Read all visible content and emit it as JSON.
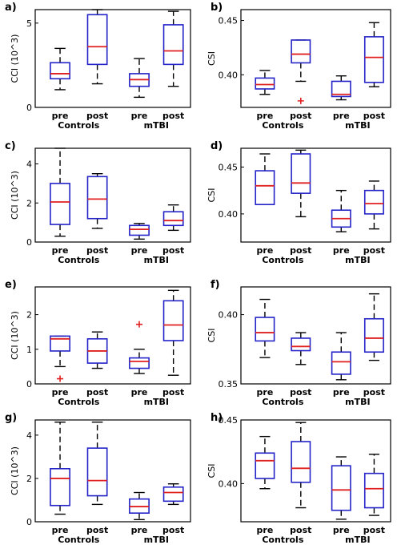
{
  "chart_data": [
    {
      "panel": "a)",
      "type": "box",
      "ylabel": "CCI (10^3)",
      "ylim": [
        0,
        5.8
      ],
      "yticks": [
        0,
        5
      ],
      "ytick_labels": [
        "0",
        "5"
      ],
      "group_labels": [
        "Controls",
        "mTBI"
      ],
      "boxes": [
        {
          "label": "pre",
          "whislo": 1.05,
          "q1": 1.7,
          "med": 2.0,
          "q3": 2.65,
          "whishi": 3.5,
          "outliers": []
        },
        {
          "label": "post",
          "whislo": 1.4,
          "q1": 2.55,
          "med": 3.6,
          "q3": 5.5,
          "whishi": 5.8,
          "outliers": []
        },
        {
          "label": "pre",
          "whislo": 0.6,
          "q1": 1.25,
          "med": 1.65,
          "q3": 2.0,
          "whishi": 2.9,
          "outliers": []
        },
        {
          "label": "post",
          "whislo": 1.25,
          "q1": 2.55,
          "med": 3.35,
          "q3": 4.9,
          "whishi": 5.7,
          "outliers": []
        }
      ]
    },
    {
      "panel": "b)",
      "type": "box",
      "ylabel": "CSI",
      "ylim": [
        0.37,
        0.46
      ],
      "yticks": [
        0.4,
        0.45
      ],
      "ytick_labels": [
        "0.40",
        "0.45"
      ],
      "group_labels": [
        "Controls",
        "mTBI"
      ],
      "boxes": [
        {
          "label": "pre",
          "whislo": 0.382,
          "q1": 0.387,
          "med": 0.391,
          "q3": 0.397,
          "whishi": 0.404,
          "outliers": []
        },
        {
          "label": "post",
          "whislo": 0.394,
          "q1": 0.411,
          "med": 0.419,
          "q3": 0.432,
          "whishi": 0.432,
          "outliers": [
            0.376
          ]
        },
        {
          "label": "pre",
          "whislo": 0.377,
          "q1": 0.38,
          "med": 0.382,
          "q3": 0.394,
          "whishi": 0.399,
          "outliers": []
        },
        {
          "label": "post",
          "whislo": 0.389,
          "q1": 0.393,
          "med": 0.416,
          "q3": 0.435,
          "whishi": 0.448,
          "outliers": []
        }
      ]
    },
    {
      "panel": "c)",
      "type": "box",
      "ylabel": "CCI (10^3)",
      "ylim": [
        0,
        4.8
      ],
      "yticks": [
        0,
        2,
        4
      ],
      "ytick_labels": [
        "0",
        "2",
        "4"
      ],
      "group_labels": [
        "Controls",
        "mTBI"
      ],
      "boxes": [
        {
          "label": "pre",
          "whislo": 0.3,
          "q1": 0.9,
          "med": 2.05,
          "q3": 3.0,
          "whishi": 4.8,
          "outliers": []
        },
        {
          "label": "post",
          "whislo": 0.7,
          "q1": 1.2,
          "med": 2.2,
          "q3": 3.35,
          "whishi": 3.5,
          "outliers": []
        },
        {
          "label": "pre",
          "whislo": 0.15,
          "q1": 0.35,
          "med": 0.65,
          "q3": 0.85,
          "whishi": 0.95,
          "outliers": []
        },
        {
          "label": "post",
          "whislo": 0.6,
          "q1": 0.85,
          "med": 1.1,
          "q3": 1.55,
          "whishi": 1.9,
          "outliers": []
        }
      ]
    },
    {
      "panel": "d)",
      "type": "box",
      "ylabel": "CSI",
      "ylim": [
        0.37,
        0.47
      ],
      "yticks": [
        0.4,
        0.45
      ],
      "ytick_labels": [
        "0.40",
        "0.45"
      ],
      "group_labels": [
        "Controls",
        "mTBI"
      ],
      "boxes": [
        {
          "label": "pre",
          "whislo": 0.41,
          "q1": 0.41,
          "med": 0.43,
          "q3": 0.446,
          "whishi": 0.464,
          "outliers": []
        },
        {
          "label": "post",
          "whislo": 0.397,
          "q1": 0.422,
          "med": 0.433,
          "q3": 0.464,
          "whishi": 0.468,
          "outliers": []
        },
        {
          "label": "pre",
          "whislo": 0.381,
          "q1": 0.386,
          "med": 0.395,
          "q3": 0.404,
          "whishi": 0.425,
          "outliers": []
        },
        {
          "label": "post",
          "whislo": 0.384,
          "q1": 0.4,
          "med": 0.411,
          "q3": 0.425,
          "whishi": 0.435,
          "outliers": []
        }
      ]
    },
    {
      "panel": "e)",
      "type": "box",
      "ylabel": "CCI (10^3)",
      "ylim": [
        0,
        2.8
      ],
      "yticks": [
        0,
        1,
        2
      ],
      "ytick_labels": [
        "0",
        "1",
        "2"
      ],
      "group_labels": [
        "Controls",
        "mTBI"
      ],
      "boxes": [
        {
          "label": "pre",
          "whislo": 0.5,
          "q1": 0.95,
          "med": 1.3,
          "q3": 1.38,
          "whishi": 1.38,
          "outliers": [
            0.15
          ]
        },
        {
          "label": "post",
          "whislo": 0.45,
          "q1": 0.6,
          "med": 0.95,
          "q3": 1.3,
          "whishi": 1.5,
          "outliers": []
        },
        {
          "label": "pre",
          "whislo": 0.3,
          "q1": 0.45,
          "med": 0.65,
          "q3": 0.75,
          "whishi": 1.0,
          "outliers": [
            1.72
          ]
        },
        {
          "label": "post",
          "whislo": 0.25,
          "q1": 1.25,
          "med": 1.7,
          "q3": 2.4,
          "whishi": 2.7,
          "outliers": []
        }
      ]
    },
    {
      "panel": "f)",
      "type": "box",
      "ylabel": "CSI",
      "ylim": [
        0.35,
        0.42
      ],
      "yticks": [
        0.35,
        0.4
      ],
      "ytick_labels": [
        "0.35",
        "0.40"
      ],
      "group_labels": [
        "Controls",
        "mTBI"
      ],
      "boxes": [
        {
          "label": "pre",
          "whislo": 0.369,
          "q1": 0.381,
          "med": 0.387,
          "q3": 0.398,
          "whishi": 0.411,
          "outliers": []
        },
        {
          "label": "post",
          "whislo": 0.364,
          "q1": 0.374,
          "med": 0.377,
          "q3": 0.383,
          "whishi": 0.387,
          "outliers": []
        },
        {
          "label": "pre",
          "whislo": 0.353,
          "q1": 0.357,
          "med": 0.366,
          "q3": 0.373,
          "whishi": 0.387,
          "outliers": []
        },
        {
          "label": "post",
          "whislo": 0.367,
          "q1": 0.373,
          "med": 0.383,
          "q3": 0.397,
          "whishi": 0.415,
          "outliers": []
        }
      ]
    },
    {
      "panel": "g)",
      "type": "box",
      "ylabel": "CCI (10^3)",
      "ylim": [
        0,
        4.7
      ],
      "yticks": [
        0,
        2,
        4
      ],
      "ytick_labels": [
        "0",
        "2",
        "4"
      ],
      "group_labels": [
        "Controls",
        "mTBI"
      ],
      "boxes": [
        {
          "label": "pre",
          "whislo": 0.35,
          "q1": 0.75,
          "med": 2.0,
          "q3": 2.45,
          "whishi": 4.6,
          "outliers": []
        },
        {
          "label": "post",
          "whislo": 0.8,
          "q1": 1.2,
          "med": 1.9,
          "q3": 3.4,
          "whishi": 4.6,
          "outliers": []
        },
        {
          "label": "pre",
          "whislo": 0.1,
          "q1": 0.4,
          "med": 0.7,
          "q3": 1.05,
          "whishi": 1.35,
          "outliers": []
        },
        {
          "label": "post",
          "whislo": 0.8,
          "q1": 0.95,
          "med": 1.35,
          "q3": 1.6,
          "whishi": 1.75,
          "outliers": []
        }
      ]
    },
    {
      "panel": "h)",
      "type": "box",
      "ylabel": "CSI",
      "ylim": [
        0.37,
        0.45
      ],
      "yticks": [
        0.4,
        0.45
      ],
      "ytick_labels": [
        "0.40",
        "0.45"
      ],
      "group_labels": [
        "Controls",
        "mTBI"
      ],
      "boxes": [
        {
          "label": "pre",
          "whislo": 0.396,
          "q1": 0.404,
          "med": 0.418,
          "q3": 0.424,
          "whishi": 0.437,
          "outliers": []
        },
        {
          "label": "post",
          "whislo": 0.381,
          "q1": 0.401,
          "med": 0.412,
          "q3": 0.433,
          "whishi": 0.448,
          "outliers": []
        },
        {
          "label": "pre",
          "whislo": 0.372,
          "q1": 0.379,
          "med": 0.395,
          "q3": 0.414,
          "whishi": 0.421,
          "outliers": []
        },
        {
          "label": "post",
          "whislo": 0.375,
          "q1": 0.381,
          "med": 0.396,
          "q3": 0.408,
          "whishi": 0.423,
          "outliers": []
        }
      ]
    }
  ],
  "colors": {
    "box": "#2323c8",
    "median": "#e02020",
    "outlier": "#e02020",
    "whisker": "#000000"
  }
}
